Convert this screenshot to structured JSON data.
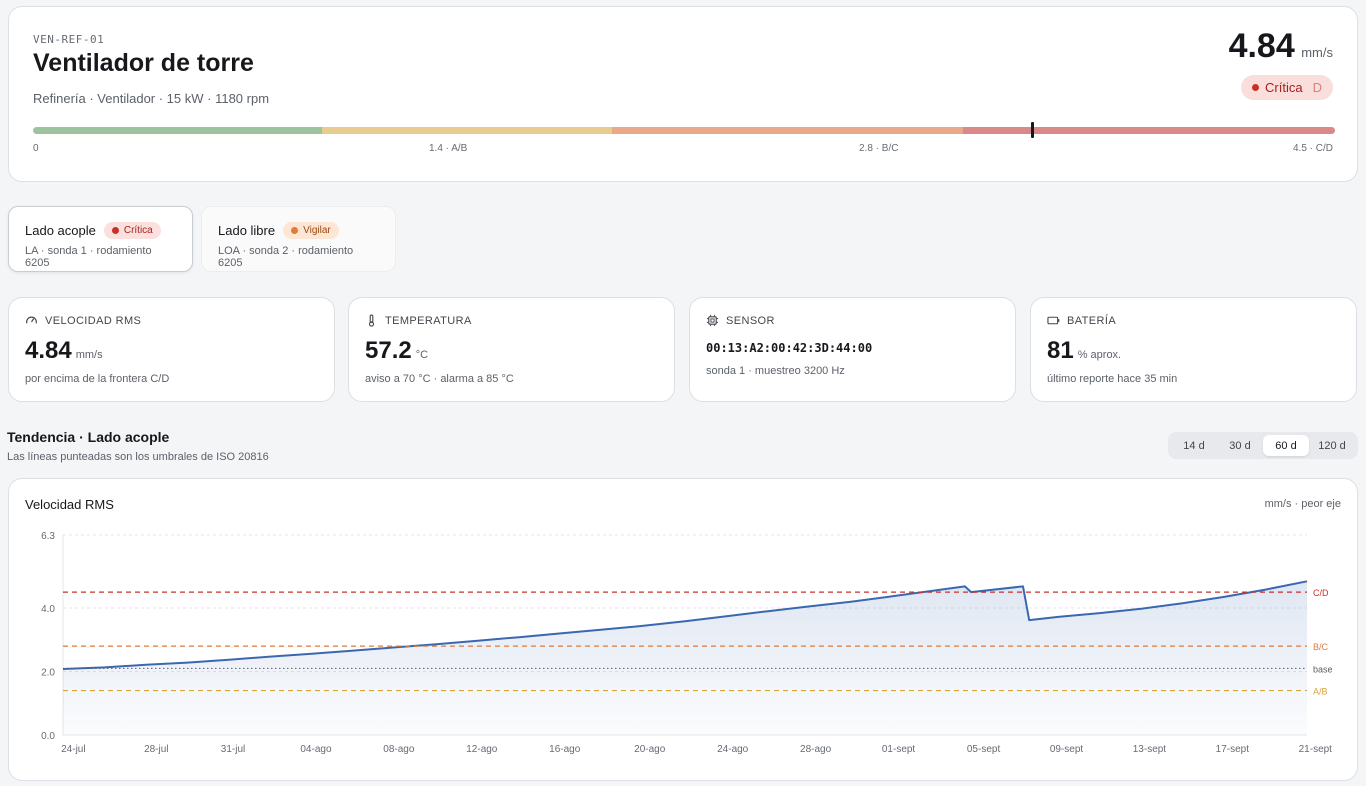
{
  "asset": {
    "code": "VEN-REF-01",
    "title": "Ventilador de torre",
    "subtitle": "Refinería · Ventilador · 15 kW · 1180 rpm",
    "value": "4.84",
    "unit": "mm/s",
    "severity": "Crítica",
    "zone": "D",
    "scale_labels": [
      "0",
      "1.4 · A/B",
      "2.8 · B/C",
      "4.5 · C/D"
    ],
    "scale_colors": [
      "#9cc39e",
      "#e7cc8f",
      "#e9a887",
      "#d98a88"
    ],
    "scale_bounds": [
      0,
      1.4,
      2.8,
      4.5,
      6.3
    ],
    "marker_value": 4.84
  },
  "tabs": [
    {
      "title": "Lado acople",
      "badge": "Crítica",
      "badge_color": "#c9302a",
      "sub": "LA · sonda 1 · rodamiento 6205"
    },
    {
      "title": "Lado libre",
      "badge": "Vigilar",
      "badge_color": "#e07b39",
      "sub": "LOA · sonda 2 · rodamiento 6205"
    }
  ],
  "metrics": {
    "velocity": {
      "label": "VELOCIDAD RMS",
      "icon": "gauge-icon",
      "value": "4.84",
      "unit": "mm/s",
      "note": "por encima de la frontera C/D"
    },
    "temperature": {
      "label": "TEMPERATURA",
      "icon": "thermometer-icon",
      "value": "57.2",
      "unit": "°C",
      "note": "aviso a 70 °C · alarma a 85 °C"
    },
    "sensor": {
      "label": "SENSOR",
      "icon": "chip-icon",
      "mac": "00:13:A2:00:42:3D:44:00",
      "note": "sonda 1 · muestreo 3200 Hz"
    },
    "battery": {
      "label": "BATERÍA",
      "icon": "battery-icon",
      "value": "81",
      "unit": "% aprox.",
      "note": "último reporte hace 35 min"
    }
  },
  "trend": {
    "title": "Tendencia · Lado acople",
    "subtitle": "Las líneas punteadas son los umbrales de ISO 20816",
    "ranges": [
      "14 d",
      "30 d",
      "60 d",
      "120 d"
    ],
    "active_range": "60 d"
  },
  "chart_data": {
    "type": "line",
    "title": "Velocidad RMS",
    "unit_label": "mm/s · peor eje",
    "ylim": [
      0,
      6.3
    ],
    "yticks": [
      "0.0",
      "2.0",
      "4.0",
      "6.3"
    ],
    "ytick_values": [
      0,
      2,
      4,
      6.3
    ],
    "xlim": [
      0,
      60
    ],
    "xticks": [
      "24-jul",
      "28-jul",
      "31-jul",
      "04-ago",
      "08-ago",
      "12-ago",
      "16-ago",
      "20-ago",
      "24-ago",
      "28-ago",
      "01-sept",
      "05-sept",
      "09-sept",
      "13-sept",
      "17-sept",
      "21-sept"
    ],
    "xtick_days": [
      0.5,
      4.5,
      8.2,
      12.2,
      16.2,
      20.2,
      24.2,
      28.3,
      32.3,
      36.3,
      40.3,
      44.4,
      48.4,
      52.4,
      56.4,
      60.4
    ],
    "thresholds": [
      {
        "label": "C/D",
        "value": 4.5,
        "color": "#c9302a"
      },
      {
        "label": "B/C",
        "value": 2.8,
        "color": "#e07b39"
      },
      {
        "label": "base",
        "value": 2.1,
        "color": "#5a5e66"
      },
      {
        "label": "A/B",
        "value": 1.4,
        "color": "#d9a43a"
      }
    ],
    "series": [
      {
        "color": "#3a68b0",
        "x": [
          0,
          2,
          4,
          6,
          8,
          10,
          12,
          14,
          16,
          18,
          20,
          22,
          24,
          26,
          28,
          30,
          32,
          34,
          36,
          38,
          40,
          42,
          43.5,
          43.8,
          46.3,
          46.6,
          48,
          50,
          52,
          54,
          56,
          58,
          60
        ],
        "y": [
          2.08,
          2.13,
          2.21,
          2.28,
          2.37,
          2.47,
          2.56,
          2.66,
          2.76,
          2.86,
          2.97,
          3.08,
          3.2,
          3.32,
          3.44,
          3.58,
          3.74,
          3.9,
          4.05,
          4.2,
          4.37,
          4.55,
          4.68,
          4.5,
          4.68,
          3.62,
          3.72,
          3.84,
          3.98,
          4.15,
          4.35,
          4.58,
          4.84
        ]
      }
    ]
  }
}
